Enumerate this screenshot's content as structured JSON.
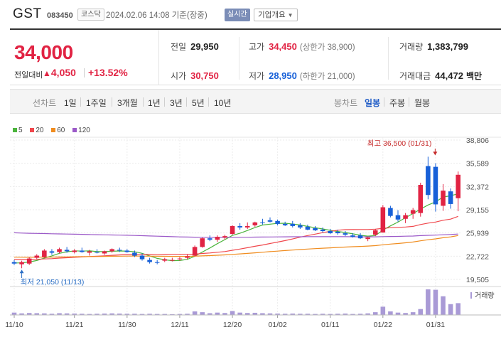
{
  "header": {
    "name": "GST",
    "code": "083450",
    "market": "코스닥",
    "datetime": "2024.02.06 14:08  기준(장중)",
    "realtime_label": "실시간",
    "company_info_label": "기업개요"
  },
  "price": {
    "current": "34,000",
    "change_label": "전일대비",
    "change_arrow": "▲",
    "change_amount": "4,050",
    "change_percent": "+13.52%"
  },
  "stats": {
    "prev_close": {
      "label": "전일",
      "value": "29,950"
    },
    "high": {
      "label": "고가",
      "value": "34,450",
      "sub": "(상한가 38,900)"
    },
    "volume": {
      "label": "거래량",
      "value": "1,383,799"
    },
    "open": {
      "label": "시가",
      "value": "30,750"
    },
    "low": {
      "label": "저가",
      "value": "28,950",
      "sub": "(하한가 21,000)"
    },
    "amount": {
      "label": "거래대금",
      "value": "44,472",
      "unit": "백만"
    }
  },
  "tabs": {
    "line_title": "선차트",
    "line_periods": [
      "1일",
      "1주일",
      "3개월",
      "1년",
      "3년",
      "5년",
      "10년"
    ],
    "candle_title": "봉차트",
    "candle_periods": [
      "일봉",
      "주봉",
      "월봉"
    ],
    "active_candle": "일봉"
  },
  "colors": {
    "up": "#e12343",
    "down": "#1760d8",
    "ma5": "#4bb43c",
    "ma20": "#f0474c",
    "ma60": "#f08c1e",
    "ma120": "#9b59c8",
    "volume": "#a99ad6"
  },
  "chart_data": {
    "type": "candlestick",
    "legend": [
      {
        "name": "5",
        "color": "#4bb43c"
      },
      {
        "name": "20",
        "color": "#f0474c"
      },
      {
        "name": "60",
        "color": "#f08c1e"
      },
      {
        "name": "120",
        "color": "#9b59c8"
      }
    ],
    "y_ticks": [
      "38,806",
      "35,589",
      "32,372",
      "29,155",
      "25,939",
      "22,722",
      "19,505"
    ],
    "ylim": [
      19505,
      38806
    ],
    "x_ticks": [
      "11/10",
      "11/21",
      "11/30",
      "12/11",
      "12/20",
      "01/02",
      "01/11",
      "01/22",
      "01/31"
    ],
    "high_annotation": "최고 36,500 (01/31)",
    "low_annotation": "최저 21,050 (11/13)",
    "volume_label": "거래량",
    "candles": [
      {
        "o": 21900,
        "h": 22200,
        "l": 21500,
        "c": 21700
      },
      {
        "o": 21600,
        "h": 22100,
        "l": 21050,
        "c": 21900
      },
      {
        "o": 21700,
        "h": 22600,
        "l": 21500,
        "c": 22400
      },
      {
        "o": 22500,
        "h": 23000,
        "l": 22300,
        "c": 22800
      },
      {
        "o": 22600,
        "h": 23700,
        "l": 22500,
        "c": 23500
      },
      {
        "o": 23400,
        "h": 23700,
        "l": 22900,
        "c": 23200
      },
      {
        "o": 23300,
        "h": 23900,
        "l": 23100,
        "c": 23700
      },
      {
        "o": 23600,
        "h": 24000,
        "l": 23200,
        "c": 23400
      },
      {
        "o": 23300,
        "h": 23700,
        "l": 23100,
        "c": 23500
      },
      {
        "o": 23500,
        "h": 23900,
        "l": 23200,
        "c": 23300
      },
      {
        "o": 23200,
        "h": 23600,
        "l": 22800,
        "c": 23400
      },
      {
        "o": 23300,
        "h": 23700,
        "l": 23100,
        "c": 23200
      },
      {
        "o": 23100,
        "h": 23500,
        "l": 22900,
        "c": 23400
      },
      {
        "o": 23400,
        "h": 23800,
        "l": 23200,
        "c": 23700
      },
      {
        "o": 23600,
        "h": 23900,
        "l": 23300,
        "c": 23500
      },
      {
        "o": 23500,
        "h": 23700,
        "l": 23200,
        "c": 23300
      },
      {
        "o": 23200,
        "h": 23500,
        "l": 22600,
        "c": 22800
      },
      {
        "o": 22800,
        "h": 23100,
        "l": 22100,
        "c": 22300
      },
      {
        "o": 22200,
        "h": 22500,
        "l": 21700,
        "c": 21900
      },
      {
        "o": 21900,
        "h": 22200,
        "l": 21600,
        "c": 21800
      },
      {
        "o": 22100,
        "h": 22500,
        "l": 21900,
        "c": 22300
      },
      {
        "o": 22200,
        "h": 22500,
        "l": 22000,
        "c": 22200
      },
      {
        "o": 22300,
        "h": 22600,
        "l": 22100,
        "c": 22400
      },
      {
        "o": 22500,
        "h": 23000,
        "l": 22300,
        "c": 22700
      },
      {
        "o": 22800,
        "h": 24200,
        "l": 22700,
        "c": 24000
      },
      {
        "o": 24000,
        "h": 25300,
        "l": 23900,
        "c": 25200
      },
      {
        "o": 25200,
        "h": 25600,
        "l": 24800,
        "c": 25000
      },
      {
        "o": 25000,
        "h": 25600,
        "l": 24700,
        "c": 25400
      },
      {
        "o": 25300,
        "h": 25700,
        "l": 25000,
        "c": 25500
      },
      {
        "o": 25800,
        "h": 27000,
        "l": 25700,
        "c": 26900
      },
      {
        "o": 26900,
        "h": 27300,
        "l": 26400,
        "c": 26700
      },
      {
        "o": 26700,
        "h": 27400,
        "l": 26500,
        "c": 26900
      },
      {
        "o": 27000,
        "h": 27500,
        "l": 26800,
        "c": 27400
      },
      {
        "o": 27400,
        "h": 27900,
        "l": 27100,
        "c": 27300
      },
      {
        "o": 27700,
        "h": 28100,
        "l": 27400,
        "c": 27500
      },
      {
        "o": 27600,
        "h": 27800,
        "l": 27000,
        "c": 27200
      },
      {
        "o": 27200,
        "h": 27500,
        "l": 26900,
        "c": 27000
      },
      {
        "o": 27200,
        "h": 27600,
        "l": 26700,
        "c": 26900
      },
      {
        "o": 27000,
        "h": 27300,
        "l": 26500,
        "c": 26700
      },
      {
        "o": 26800,
        "h": 27100,
        "l": 26300,
        "c": 26400
      },
      {
        "o": 26600,
        "h": 26900,
        "l": 26200,
        "c": 26300
      },
      {
        "o": 26400,
        "h": 26700,
        "l": 26000,
        "c": 26200
      },
      {
        "o": 26200,
        "h": 26500,
        "l": 25800,
        "c": 25900
      },
      {
        "o": 26100,
        "h": 26400,
        "l": 25700,
        "c": 25900
      },
      {
        "o": 25900,
        "h": 26200,
        "l": 25500,
        "c": 25700
      },
      {
        "o": 25600,
        "h": 25900,
        "l": 25300,
        "c": 25400
      },
      {
        "o": 25600,
        "h": 25900,
        "l": 25100,
        "c": 25200
      },
      {
        "o": 25100,
        "h": 25400,
        "l": 24800,
        "c": 25300
      },
      {
        "o": 25700,
        "h": 26500,
        "l": 25500,
        "c": 26300
      },
      {
        "o": 26000,
        "h": 29800,
        "l": 26000,
        "c": 29500
      },
      {
        "o": 29400,
        "h": 29700,
        "l": 28100,
        "c": 28300
      },
      {
        "o": 28400,
        "h": 29100,
        "l": 27500,
        "c": 27800
      },
      {
        "o": 27900,
        "h": 28700,
        "l": 27300,
        "c": 28400
      },
      {
        "o": 28600,
        "h": 29400,
        "l": 27900,
        "c": 29100
      },
      {
        "o": 28700,
        "h": 32900,
        "l": 28200,
        "c": 32600
      },
      {
        "o": 35200,
        "h": 36500,
        "l": 30600,
        "c": 31200
      },
      {
        "o": 35100,
        "h": 35600,
        "l": 28900,
        "c": 29900
      },
      {
        "o": 29700,
        "h": 32700,
        "l": 29000,
        "c": 31800
      },
      {
        "o": 31700,
        "h": 32100,
        "l": 29300,
        "c": 29950
      },
      {
        "o": 30750,
        "h": 34450,
        "l": 28950,
        "c": 34000
      }
    ],
    "volume": [
      12,
      8,
      10,
      9,
      8,
      6,
      9,
      8,
      7,
      6,
      5,
      6,
      7,
      8,
      7,
      6,
      6,
      5,
      6,
      5,
      5,
      4,
      5,
      6,
      18,
      14,
      9,
      12,
      10,
      20,
      12,
      10,
      11,
      9,
      8,
      7,
      6,
      7,
      6,
      6,
      5,
      6,
      5,
      6,
      7,
      5,
      6,
      8,
      14,
      42,
      18,
      12,
      10,
      14,
      30,
      130,
      128,
      95,
      55,
      60
    ]
  }
}
